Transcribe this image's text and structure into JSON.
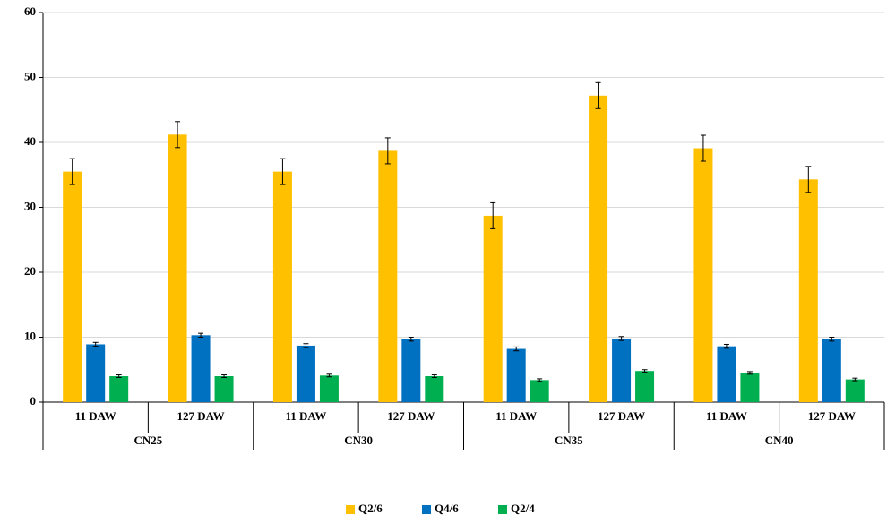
{
  "chart_data": {
    "type": "bar",
    "categories": [
      "11 DAW",
      "127 DAW",
      "11 DAW",
      "127 DAW",
      "11 DAW",
      "127 DAW",
      "11 DAW",
      "127 DAW"
    ],
    "groups": [
      "CN25",
      "CN30",
      "CN35",
      "CN40"
    ],
    "series": [
      {
        "name": "Q2/6",
        "color": "#FFC000",
        "values": [
          35.5,
          41.2,
          35.5,
          38.7,
          28.7,
          47.2,
          39.1,
          34.3
        ],
        "errors": [
          2.0,
          2.0,
          2.0,
          2.0,
          2.0,
          2.0,
          2.0,
          2.0
        ]
      },
      {
        "name": "Q4/6",
        "color": "#0070C0",
        "values": [
          8.9,
          10.3,
          8.7,
          9.7,
          8.2,
          9.8,
          8.6,
          9.7
        ],
        "errors": [
          0.3,
          0.3,
          0.3,
          0.3,
          0.3,
          0.3,
          0.3,
          0.3
        ]
      },
      {
        "name": "Q2/4",
        "color": "#00B050",
        "values": [
          4.0,
          4.0,
          4.1,
          4.0,
          3.4,
          4.8,
          4.5,
          3.5
        ],
        "errors": [
          0.2,
          0.2,
          0.2,
          0.2,
          0.2,
          0.2,
          0.2,
          0.2
        ]
      }
    ],
    "ylim": [
      0,
      60
    ],
    "yticks": [
      0,
      10,
      20,
      30,
      40,
      50,
      60
    ],
    "grid": true,
    "legend": "bottom"
  }
}
